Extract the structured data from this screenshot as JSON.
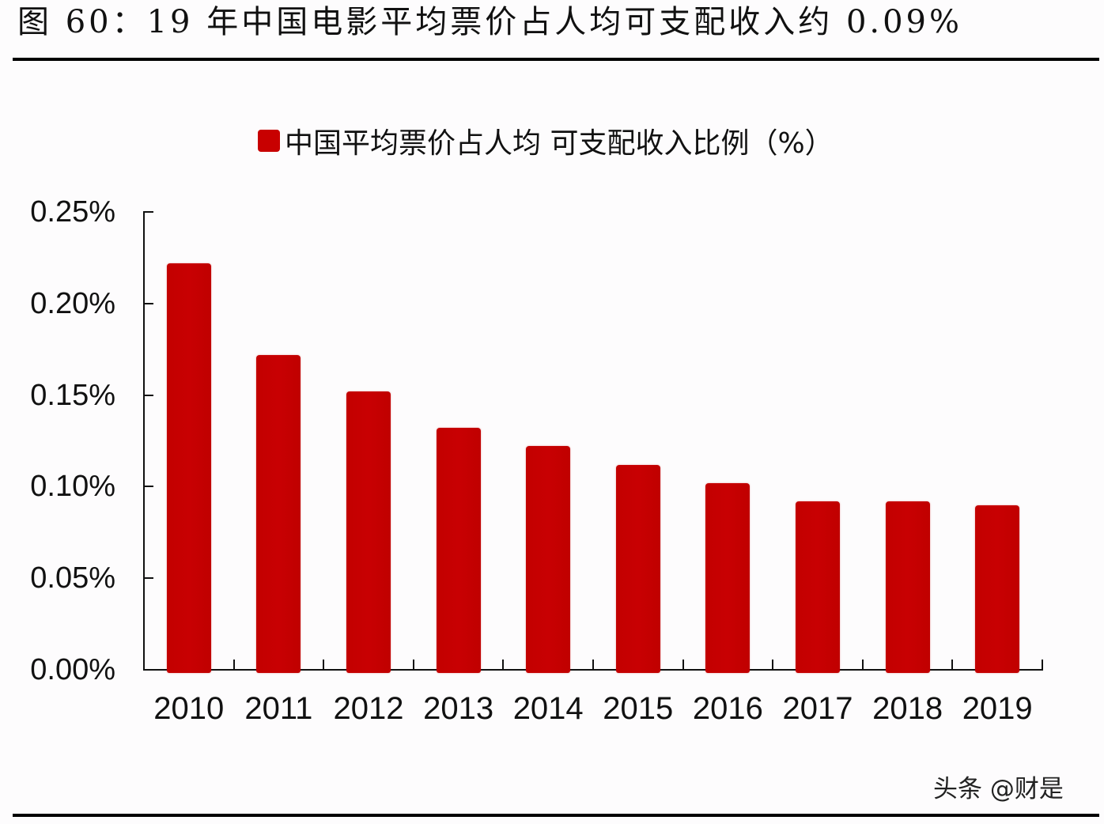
{
  "figure": {
    "title": "图 60：19 年中国电影平均票价占人均可支配收入约 0.09%",
    "watermark": "头条 @财是"
  },
  "legend": {
    "label": "中国平均票价占人均 可支配收入比例（%）",
    "swatch_color": "#c80000"
  },
  "colors": {
    "bar": "#c50000",
    "axis": "#111111",
    "background": "#fdfcfd"
  },
  "y_axis": {
    "ticks": [
      "0.25%",
      "0.20%",
      "0.15%",
      "0.10%",
      "0.05%",
      "0.00%"
    ]
  },
  "x_axis": {
    "ticks": [
      "2010",
      "2011",
      "2012",
      "2013",
      "2014",
      "2015",
      "2016",
      "2017",
      "2018",
      "2019"
    ]
  },
  "chart_data": {
    "type": "bar",
    "title": "图 60：19 年中国电影平均票价占人均可支配收入约 0.09%",
    "categories": [
      "2010",
      "2011",
      "2012",
      "2013",
      "2014",
      "2015",
      "2016",
      "2017",
      "2018",
      "2019"
    ],
    "series": [
      {
        "name": "中国平均票价占人均 可支配收入比例（%）",
        "values": [
          0.222,
          0.172,
          0.152,
          0.132,
          0.122,
          0.112,
          0.102,
          0.092,
          0.092,
          0.09
        ],
        "color": "#c50000"
      }
    ],
    "xlabel": "",
    "ylabel": "",
    "y_unit": "%",
    "ylim": [
      0,
      0.25
    ],
    "y_ticks": [
      0.0,
      0.05,
      0.1,
      0.15,
      0.2,
      0.25
    ],
    "grid": false,
    "legend_position": "top-center"
  }
}
